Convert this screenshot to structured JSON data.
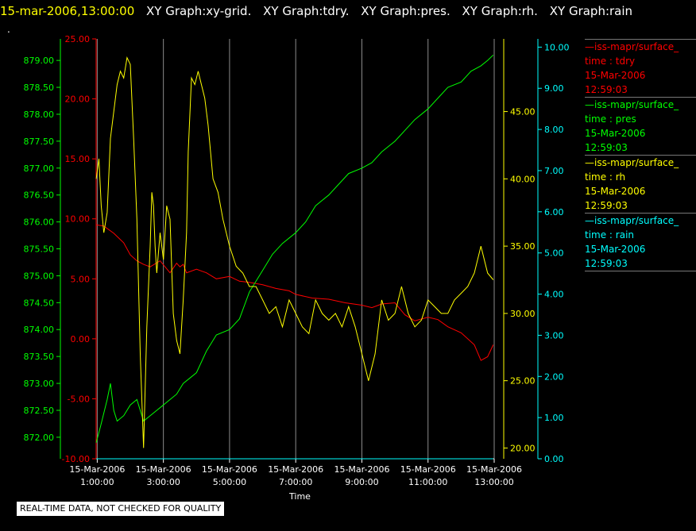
{
  "header": {
    "timestamp": "15-mar-2006,13:00:00",
    "graphs": [
      "XY Graph:xy-grid.",
      "XY Graph:tdry.",
      "XY Graph:pres.",
      "XY Graph:rh.",
      "XY Graph:rain"
    ],
    "marker": "."
  },
  "colors": {
    "timestamp": "#ffff00",
    "graphs": "#ffffff",
    "tdry": "#ff0000",
    "pres": "#00ff00",
    "rh": "#ffff00",
    "rain": "#00ffff",
    "grid": "#c8c8c8",
    "axis_text": "#ffffff"
  },
  "legend": [
    {
      "name": "—iss-mapr/surface_",
      "var": "time : tdry",
      "date": "15-Mar-2006",
      "time": "12:59:03",
      "color": "#ff0000"
    },
    {
      "name": "—iss-mapr/surface_",
      "var": "time : pres",
      "date": "15-Mar-2006",
      "time": "12:59:03",
      "color": "#00ff00"
    },
    {
      "name": "—iss-mapr/surface_",
      "var": "time : rh",
      "date": "15-Mar-2006",
      "time": "12:59:03",
      "color": "#ffff00"
    },
    {
      "name": "—iss-mapr/surface_",
      "var": "time : rain",
      "date": "15-Mar-2006",
      "time": "12:59:03",
      "color": "#00ffff"
    }
  ],
  "footer": {
    "notice": "REAL-TIME DATA, NOT CHECKED FOR QUALITY"
  },
  "chart_data": {
    "type": "line",
    "xlabel": "Time",
    "xlim": [
      "2006-03-15 00:58",
      "2006-03-15 13:00"
    ],
    "x_ticks": [
      {
        "date": "15-Mar-2006",
        "time": "1:00:00",
        "hour": 1
      },
      {
        "date": "15-Mar-2006",
        "time": "3:00:00",
        "hour": 3
      },
      {
        "date": "15-Mar-2006",
        "time": "5:00:00",
        "hour": 5
      },
      {
        "date": "15-Mar-2006",
        "time": "7:00:00",
        "hour": 7
      },
      {
        "date": "15-Mar-2006",
        "time": "9:00:00",
        "hour": 9
      },
      {
        "date": "15-Mar-2006",
        "time": "11:00:00",
        "hour": 11
      },
      {
        "date": "15-Mar-2006",
        "time": "13:00:00",
        "hour": 13
      }
    ],
    "grid": "vertical lines at each x tick",
    "axes": [
      {
        "id": "tdry",
        "side": "left",
        "color": "#ff0000",
        "range": [
          -10,
          25
        ],
        "ticks": [
          "-10.00",
          "-5.00",
          "0.00",
          "5.00",
          "10.00",
          "15.00",
          "20.00",
          "25.00"
        ]
      },
      {
        "id": "pres",
        "side": "left",
        "color": "#00ff00",
        "range": [
          871.6,
          879.4
        ],
        "ticks": [
          "872.00",
          "872.50",
          "873.00",
          "873.50",
          "874.00",
          "874.50",
          "875.00",
          "875.50",
          "876.00",
          "876.50",
          "877.00",
          "877.50",
          "878.00",
          "878.50",
          "879.00"
        ]
      },
      {
        "id": "rh",
        "side": "right",
        "color": "#ffff00",
        "range": [
          19.2,
          50.4
        ],
        "ticks": [
          "20.00",
          "25.00",
          "30.00",
          "35.00",
          "40.00",
          "45.00"
        ]
      },
      {
        "id": "rain",
        "side": "right",
        "color": "#00ffff",
        "range": [
          0,
          10.2
        ],
        "ticks": [
          "0.00",
          "1.00",
          "2.00",
          "3.00",
          "4.00",
          "5.00",
          "6.00",
          "7.00",
          "8.00",
          "9.00",
          "10.00"
        ]
      }
    ],
    "series": [
      {
        "name": "tdry",
        "axis": "tdry",
        "color": "#ff0000",
        "x": [
          0.97,
          1.2,
          1.5,
          1.8,
          2.0,
          2.2,
          2.4,
          2.6,
          2.9,
          3.2,
          3.4,
          3.5,
          3.6,
          3.7,
          4.0,
          4.3,
          4.6,
          5.0,
          5.3,
          5.6,
          6.0,
          6.4,
          6.8,
          7.0,
          7.5,
          8.0,
          8.5,
          9.0,
          9.3,
          9.6,
          10.0,
          10.3,
          10.6,
          11.0,
          11.3,
          11.6,
          12.0,
          12.4,
          12.6,
          12.8,
          12.97
        ],
        "y": [
          9.5,
          9.4,
          8.8,
          8.0,
          7.0,
          6.5,
          6.2,
          6.0,
          6.5,
          5.5,
          6.3,
          6.0,
          6.2,
          5.5,
          5.8,
          5.5,
          5.0,
          5.2,
          4.8,
          4.7,
          4.5,
          4.2,
          4.0,
          3.7,
          3.4,
          3.3,
          3.0,
          2.8,
          2.6,
          2.9,
          3.0,
          2.0,
          1.5,
          1.8,
          1.6,
          1.0,
          0.5,
          -0.5,
          -1.8,
          -1.5,
          -0.5
        ]
      },
      {
        "name": "pres",
        "axis": "pres",
        "color": "#00ff00",
        "x": [
          0.97,
          1.1,
          1.3,
          1.4,
          1.5,
          1.6,
          1.8,
          2.0,
          2.2,
          2.4,
          2.6,
          2.8,
          3.0,
          3.2,
          3.4,
          3.6,
          3.8,
          4.0,
          4.3,
          4.6,
          5.0,
          5.3,
          5.6,
          6.0,
          6.3,
          6.6,
          7.0,
          7.3,
          7.6,
          8.0,
          8.3,
          8.6,
          9.0,
          9.3,
          9.6,
          10.0,
          10.3,
          10.6,
          11.0,
          11.3,
          11.6,
          12.0,
          12.3,
          12.6,
          12.8,
          12.97
        ],
        "y": [
          871.9,
          872.2,
          872.7,
          873.0,
          872.5,
          872.3,
          872.4,
          872.6,
          872.7,
          872.3,
          872.4,
          872.5,
          872.6,
          872.7,
          872.8,
          873.0,
          873.1,
          873.2,
          873.6,
          873.9,
          874.0,
          874.2,
          874.7,
          875.1,
          875.4,
          875.6,
          875.8,
          876.0,
          876.3,
          876.5,
          876.7,
          876.9,
          877.0,
          877.1,
          877.3,
          877.5,
          877.7,
          877.9,
          878.1,
          878.3,
          878.5,
          878.6,
          878.8,
          878.9,
          879.0,
          879.1
        ]
      },
      {
        "name": "rh",
        "axis": "rh",
        "color": "#ffff00",
        "x": [
          0.97,
          1.05,
          1.12,
          1.2,
          1.3,
          1.4,
          1.5,
          1.6,
          1.7,
          1.8,
          1.9,
          2.0,
          2.1,
          2.2,
          2.3,
          2.4,
          2.5,
          2.6,
          2.65,
          2.7,
          2.75,
          2.8,
          2.9,
          3.0,
          3.1,
          3.2,
          3.3,
          3.4,
          3.5,
          3.6,
          3.7,
          3.75,
          3.85,
          3.95,
          4.05,
          4.15,
          4.25,
          4.35,
          4.5,
          4.65,
          4.8,
          5.0,
          5.2,
          5.4,
          5.6,
          5.8,
          6.0,
          6.2,
          6.4,
          6.6,
          6.8,
          7.0,
          7.2,
          7.4,
          7.6,
          7.8,
          8.0,
          8.2,
          8.4,
          8.6,
          8.8,
          9.0,
          9.2,
          9.4,
          9.6,
          9.8,
          10.0,
          10.2,
          10.4,
          10.6,
          10.8,
          11.0,
          11.2,
          11.4,
          11.6,
          11.8,
          12.0,
          12.2,
          12.4,
          12.6,
          12.8,
          12.97
        ],
        "y": [
          40.0,
          41.5,
          38.0,
          36.0,
          37.5,
          43.0,
          45.0,
          47.0,
          48.0,
          47.5,
          49.0,
          48.5,
          43.0,
          37.0,
          27.0,
          20.0,
          29.0,
          35.0,
          39.0,
          38.0,
          35.0,
          33.0,
          36.0,
          34.0,
          38.0,
          37.0,
          30.0,
          28.0,
          27.0,
          31.0,
          36.0,
          42.0,
          47.5,
          47.0,
          48.0,
          47.0,
          46.0,
          44.0,
          40.0,
          39.0,
          37.0,
          35.0,
          33.5,
          33.0,
          32.0,
          32.0,
          31.0,
          30.0,
          30.5,
          29.0,
          31.0,
          30.0,
          29.0,
          28.5,
          31.0,
          30.0,
          29.5,
          30.0,
          29.0,
          30.5,
          29.0,
          27.0,
          25.0,
          27.0,
          31.0,
          29.5,
          30.0,
          32.0,
          30.0,
          29.0,
          29.5,
          31.0,
          30.5,
          30.0,
          30.0,
          31.0,
          31.5,
          32.0,
          33.0,
          35.0,
          33.0,
          32.5
        ]
      },
      {
        "name": "rain",
        "axis": "rain",
        "color": "#00ffff",
        "x": [
          0.97,
          12.97
        ],
        "y": [
          0.0,
          0.0
        ]
      }
    ]
  }
}
